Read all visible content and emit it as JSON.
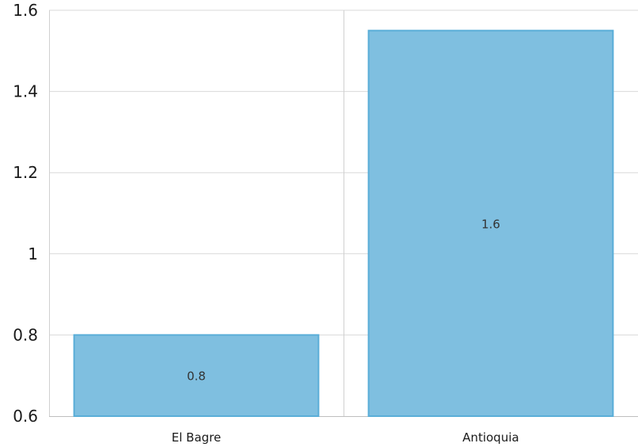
{
  "chart_data": {
    "type": "bar",
    "title": "",
    "xlabel": "",
    "ylabel": "",
    "categories": [
      "El Bagre",
      "Antioquia"
    ],
    "values": [
      0.8,
      1.55
    ],
    "data_labels": [
      "0.8",
      "1.6"
    ],
    "ylim": [
      0.6,
      1.6
    ],
    "yticks": [
      0.6,
      0.8,
      1,
      1.2,
      1.4,
      1.6
    ],
    "ytick_labels": [
      "0.6",
      "0.8",
      "1",
      "1.2",
      "1.4",
      "1.6"
    ],
    "grid": true,
    "legend": "none",
    "colors": {
      "bar_fill": "#7fbfe0",
      "bar_stroke": "#5aaed8"
    }
  }
}
